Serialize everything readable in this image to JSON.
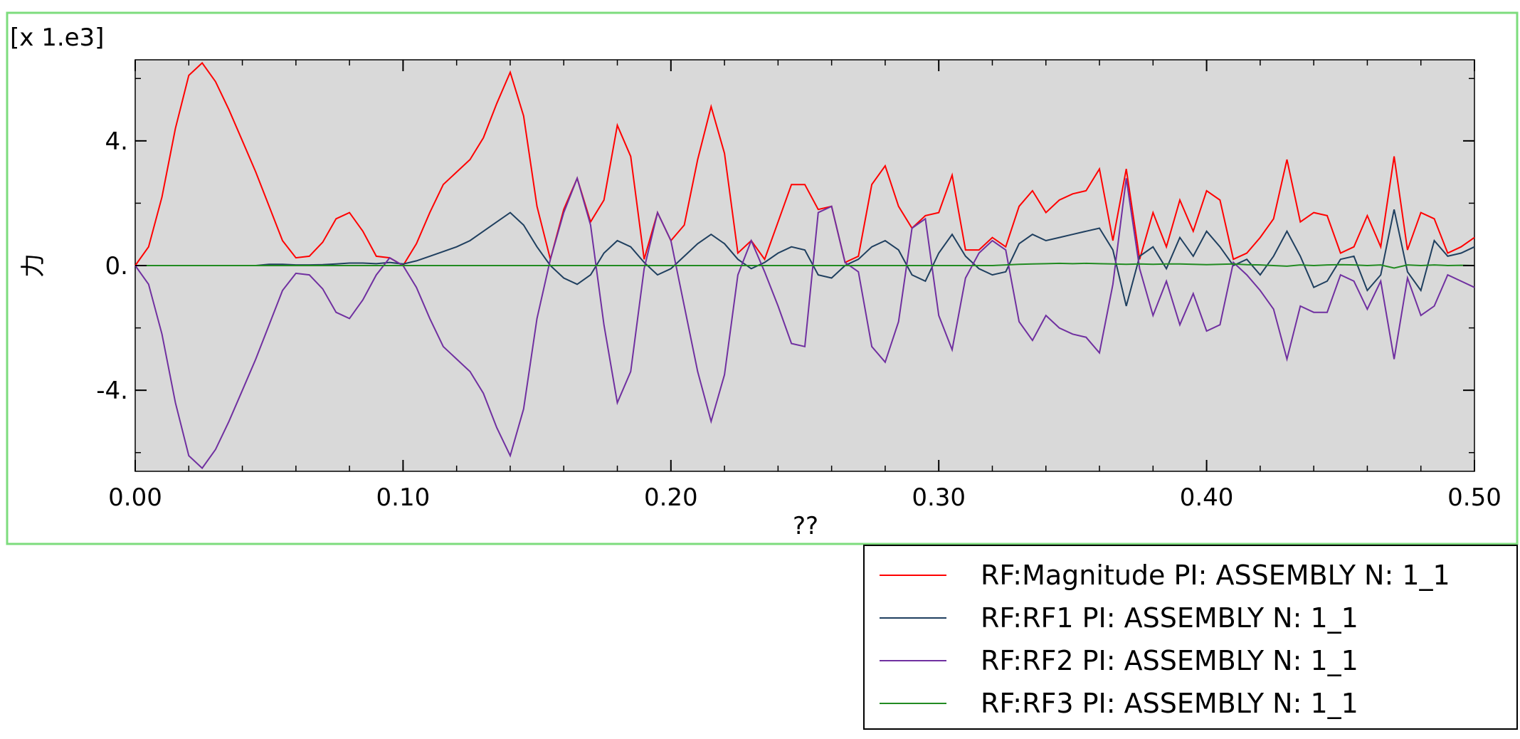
{
  "chart_data": {
    "type": "line",
    "title": "",
    "xlabel": "??",
    "ylabel": "力",
    "y_multiplier_label": "[x 1.e3]",
    "xlim": [
      0.0,
      0.5
    ],
    "ylim": [
      -6.6,
      6.6
    ],
    "x_ticks": [
      0.0,
      0.1,
      0.2,
      0.3,
      0.4,
      0.5
    ],
    "x_tick_labels": [
      "0.00",
      "0.10",
      "0.20",
      "0.30",
      "0.40",
      "0.50"
    ],
    "y_ticks": [
      -4,
      0,
      4
    ],
    "y_tick_labels": [
      "-4.",
      "0.",
      "4."
    ],
    "grid": false,
    "plot_background": "#d9d9d9",
    "frame_color": "#7ddc7d",
    "legend_position": "bottom-right",
    "x": [
      0.0,
      0.005,
      0.01,
      0.015,
      0.02,
      0.025,
      0.03,
      0.035,
      0.04,
      0.045,
      0.05,
      0.055,
      0.06,
      0.065,
      0.07,
      0.075,
      0.08,
      0.085,
      0.09,
      0.095,
      0.1,
      0.105,
      0.11,
      0.115,
      0.12,
      0.125,
      0.13,
      0.135,
      0.14,
      0.145,
      0.15,
      0.155,
      0.16,
      0.165,
      0.17,
      0.175,
      0.18,
      0.185,
      0.19,
      0.195,
      0.2,
      0.205,
      0.21,
      0.215,
      0.22,
      0.225,
      0.23,
      0.235,
      0.24,
      0.245,
      0.25,
      0.255,
      0.26,
      0.265,
      0.27,
      0.275,
      0.28,
      0.285,
      0.29,
      0.295,
      0.3,
      0.305,
      0.31,
      0.315,
      0.32,
      0.325,
      0.33,
      0.335,
      0.34,
      0.345,
      0.35,
      0.355,
      0.36,
      0.365,
      0.37,
      0.375,
      0.38,
      0.385,
      0.39,
      0.395,
      0.4,
      0.405,
      0.41,
      0.415,
      0.42,
      0.425,
      0.43,
      0.435,
      0.44,
      0.445,
      0.45,
      0.455,
      0.46,
      0.465,
      0.47,
      0.475,
      0.48,
      0.485,
      0.49,
      0.495,
      0.5
    ],
    "series": [
      {
        "name": "RF:Magnitude PI: ASSEMBLY N: 1_1",
        "color": "#ff0000",
        "values": [
          0,
          0.6,
          2.2,
          4.4,
          6.1,
          6.5,
          5.9,
          5.0,
          4.0,
          3.0,
          1.9,
          0.8,
          0.25,
          0.3,
          0.75,
          1.5,
          1.7,
          1.1,
          0.3,
          0.25,
          0,
          0.7,
          1.7,
          2.6,
          3.0,
          3.4,
          4.1,
          5.2,
          6.2,
          4.8,
          1.9,
          0.2,
          1.8,
          2.8,
          1.4,
          2.1,
          4.5,
          3.5,
          0.2,
          1.7,
          0.8,
          1.3,
          3.4,
          5.1,
          3.6,
          0.4,
          0.8,
          0.2,
          1.4,
          2.6,
          2.6,
          1.8,
          1.9,
          0.1,
          0.3,
          2.6,
          3.2,
          1.9,
          1.2,
          1.6,
          1.7,
          2.9,
          0.5,
          0.5,
          0.9,
          0.6,
          1.9,
          2.4,
          1.7,
          2.1,
          2.3,
          2.4,
          3.1,
          0.8,
          3.1,
          0.2,
          1.7,
          0.6,
          2.1,
          1.1,
          2.4,
          2.1,
          0.2,
          0.4,
          0.9,
          1.5,
          3.4,
          1.4,
          1.7,
          1.6,
          0.4,
          0.6,
          1.6,
          0.6,
          3.5,
          0.5,
          1.7,
          1.5,
          0.4,
          0.6,
          0.9
        ]
      },
      {
        "name": "RF:RF1 PI: ASSEMBLY N: 1_1",
        "color": "#1f3f5f",
        "values": [
          0,
          0,
          0,
          0,
          0,
          0,
          0,
          0,
          0,
          0,
          0.04,
          0.04,
          0.02,
          0.02,
          0.03,
          0.05,
          0.08,
          0.08,
          0.06,
          0.1,
          0.05,
          0.15,
          0.3,
          0.45,
          0.6,
          0.8,
          1.1,
          1.4,
          1.7,
          1.3,
          0.6,
          0,
          -0.4,
          -0.6,
          -0.3,
          0.4,
          0.8,
          0.6,
          0.1,
          -0.3,
          -0.1,
          0.3,
          0.7,
          1.0,
          0.7,
          0.2,
          -0.1,
          0.1,
          0.4,
          0.6,
          0.5,
          -0.3,
          -0.4,
          0,
          0.2,
          0.6,
          0.8,
          0.5,
          -0.3,
          -0.5,
          0.4,
          1.0,
          0.3,
          -0.1,
          -0.3,
          -0.2,
          0.7,
          1.0,
          0.8,
          0.9,
          1.0,
          1.1,
          1.2,
          0.5,
          -1.3,
          0.3,
          0.6,
          -0.1,
          0.9,
          0.3,
          1.1,
          0.6,
          0,
          0.2,
          -0.3,
          0.3,
          1.1,
          0.3,
          -0.7,
          -0.5,
          0.2,
          0.3,
          -0.8,
          -0.3,
          1.8,
          -0.2,
          -0.8,
          0.8,
          0.3,
          0.4,
          0.6
        ]
      },
      {
        "name": "RF:RF2 PI: ASSEMBLY N: 1_1",
        "color": "#7030a0",
        "values": [
          0,
          -0.6,
          -2.2,
          -4.4,
          -6.1,
          -6.5,
          -5.9,
          -5.0,
          -4.0,
          -3.0,
          -1.9,
          -0.8,
          -0.25,
          -0.3,
          -0.75,
          -1.5,
          -1.7,
          -1.1,
          -0.3,
          0.25,
          0,
          -0.7,
          -1.7,
          -2.6,
          -3.0,
          -3.4,
          -4.1,
          -5.2,
          -6.1,
          -4.6,
          -1.7,
          0.2,
          1.7,
          2.8,
          1.3,
          -1.9,
          -4.4,
          -3.4,
          -0.1,
          1.7,
          0.8,
          -1.3,
          -3.4,
          -5.0,
          -3.5,
          -0.3,
          0.8,
          -0.2,
          -1.3,
          -2.5,
          -2.6,
          1.7,
          1.9,
          0.1,
          -0.2,
          -2.6,
          -3.1,
          -1.8,
          1.2,
          1.5,
          -1.6,
          -2.7,
          -0.4,
          0.4,
          0.8,
          0.5,
          -1.8,
          -2.4,
          -1.6,
          -2.0,
          -2.2,
          -2.3,
          -2.8,
          -0.6,
          2.8,
          -0.1,
          -1.6,
          -0.5,
          -1.9,
          -0.9,
          -2.1,
          -1.9,
          0.1,
          -0.3,
          -0.8,
          -1.4,
          -3.0,
          -1.3,
          -1.5,
          -1.5,
          -0.3,
          -0.5,
          -1.4,
          -0.5,
          -3.0,
          -0.4,
          -1.6,
          -1.3,
          -0.3,
          -0.5,
          -0.7
        ]
      },
      {
        "name": "RF:RF3 PI: ASSEMBLY N: 1_1",
        "color": "#228b22",
        "values": [
          0,
          0,
          0,
          0,
          0,
          0,
          0,
          0,
          0,
          0,
          0,
          0,
          0,
          0,
          0,
          0,
          0,
          0,
          0,
          0,
          0,
          0,
          0,
          0,
          0,
          0,
          0,
          0,
          0,
          0,
          0,
          0,
          0,
          0,
          0,
          0,
          0,
          0,
          0,
          0,
          0,
          0,
          0,
          0,
          0,
          0,
          0,
          0,
          0,
          0,
          0,
          0,
          0,
          0,
          0,
          0,
          0,
          0,
          0,
          0,
          0,
          0,
          0,
          0,
          0,
          0.02,
          0.04,
          0.05,
          0.06,
          0.07,
          0.06,
          0.07,
          0.06,
          0.05,
          0.04,
          0.05,
          0.04,
          0.05,
          0.05,
          0.04,
          0.03,
          0.04,
          0.05,
          0.03,
          0.02,
          0,
          -0.02,
          0.02,
          0,
          0.02,
          0.03,
          0.02,
          0,
          0.02,
          -0.08,
          0.02,
          0,
          0.02,
          0,
          0.01,
          0
        ]
      }
    ]
  }
}
